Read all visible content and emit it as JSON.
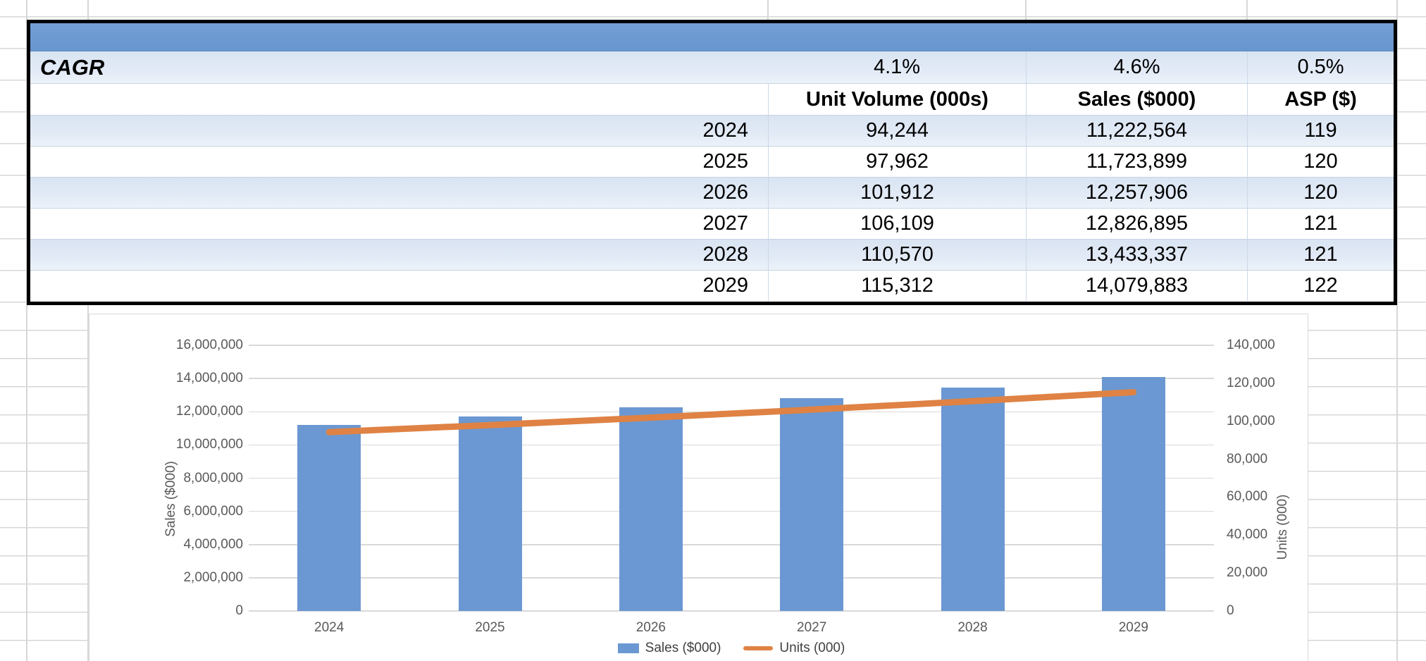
{
  "table": {
    "cagr_label": "CAGR",
    "cagr_values": [
      "4.1%",
      "4.6%",
      "0.5%"
    ],
    "columns": [
      "Unit Volume (000s)",
      "Sales ($000)",
      "ASP ($)"
    ],
    "rows": [
      {
        "year": "2024",
        "unit_volume": "94,244",
        "sales": "11,222,564",
        "asp": "119"
      },
      {
        "year": "2025",
        "unit_volume": "97,962",
        "sales": "11,723,899",
        "asp": "120"
      },
      {
        "year": "2026",
        "unit_volume": "101,912",
        "sales": "12,257,906",
        "asp": "120"
      },
      {
        "year": "2027",
        "unit_volume": "106,109",
        "sales": "12,826,895",
        "asp": "121"
      },
      {
        "year": "2028",
        "unit_volume": "110,570",
        "sales": "13,433,337",
        "asp": "121"
      },
      {
        "year": "2029",
        "unit_volume": "115,312",
        "sales": "14,079,883",
        "asp": "122"
      }
    ]
  },
  "chart_data": {
    "type": "combo",
    "categories": [
      "2024",
      "2025",
      "2026",
      "2027",
      "2028",
      "2029"
    ],
    "series": [
      {
        "name": "Sales ($000)",
        "type": "bar",
        "axis": "left",
        "color": "#6B98D2",
        "values": [
          11222564,
          11723899,
          12257906,
          12826895,
          13433337,
          14079883
        ]
      },
      {
        "name": "Units (000)",
        "type": "line",
        "axis": "right",
        "color": "#DF8244",
        "values": [
          94244,
          97962,
          101912,
          106109,
          110570,
          115312
        ]
      }
    ],
    "left_axis": {
      "title": "Sales ($000)",
      "min": 0,
      "max": 16000000,
      "step": 2000000,
      "tick_labels": [
        "0",
        "2,000,000",
        "4,000,000",
        "6,000,000",
        "8,000,000",
        "10,000,000",
        "12,000,000",
        "14,000,000",
        "16,000,000"
      ]
    },
    "right_axis": {
      "title": "Units (000)",
      "min": 0,
      "max": 140000,
      "step": 20000,
      "tick_labels": [
        "0",
        "20,000",
        "40,000",
        "60,000",
        "80,000",
        "100,000",
        "120,000",
        "140,000"
      ]
    },
    "legend": [
      "Sales ($000)",
      "Units (000)"
    ],
    "legend_position": "bottom-center",
    "grid": true
  },
  "colors": {
    "table_header_fill": "#6C9AD1",
    "table_band_fill": "#DDE7F4",
    "table_border": "#000000",
    "bar_series": "#6B98D2",
    "line_series": "#DF8244",
    "chart_gridline": "#D9D9D9",
    "chart_text": "#595959",
    "sheet_gridline": "#D7D7D7"
  }
}
